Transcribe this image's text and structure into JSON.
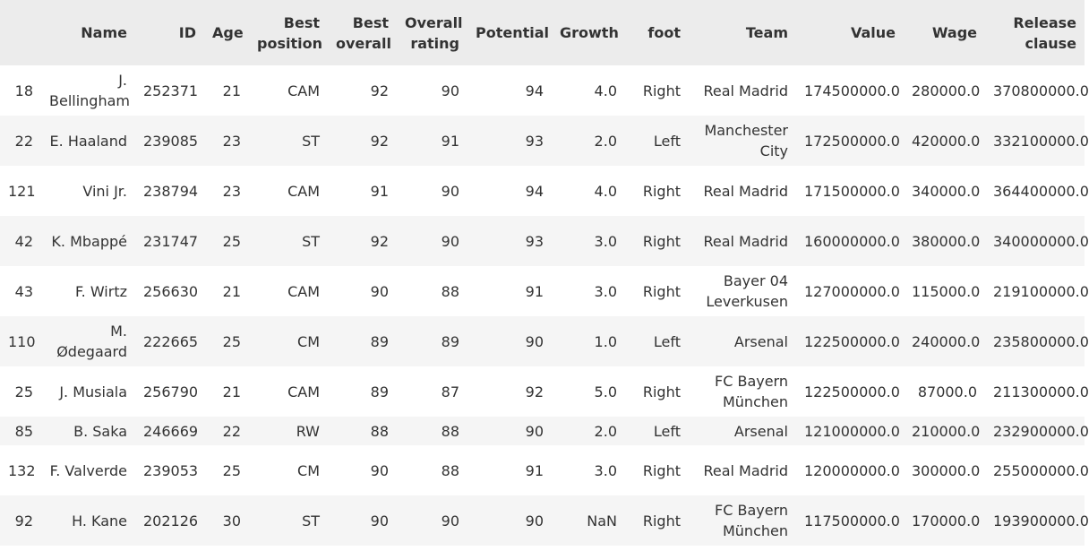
{
  "columns": {
    "index": "",
    "name": "Name",
    "id": "ID",
    "age": "Age",
    "best_position": "Best position",
    "best_overall": "Best overall",
    "overall_rating": "Overall rating",
    "potential": "Potential",
    "growth": "Growth",
    "foot": "foot",
    "team": "Team",
    "value": "Value",
    "wage": "Wage",
    "release_clause": "Release clause"
  },
  "rows": [
    {
      "index": "18",
      "name": "J. Bellingham",
      "id": "252371",
      "age": "21",
      "best_position": "CAM",
      "best_overall": "92",
      "overall_rating": "90",
      "potential": "94",
      "growth": "4.0",
      "foot": "Right",
      "team": "Real Madrid",
      "value": "174500000.0",
      "wage": "280000.0",
      "release_clause": "370800000.0"
    },
    {
      "index": "22",
      "name": "E. Haaland",
      "id": "239085",
      "age": "23",
      "best_position": "ST",
      "best_overall": "92",
      "overall_rating": "91",
      "potential": "93",
      "growth": "2.0",
      "foot": "Left",
      "team": "Manchester City",
      "value": "172500000.0",
      "wage": "420000.0",
      "release_clause": "332100000.0"
    },
    {
      "index": "121",
      "name": "Vini Jr.",
      "id": "238794",
      "age": "23",
      "best_position": "CAM",
      "best_overall": "91",
      "overall_rating": "90",
      "potential": "94",
      "growth": "4.0",
      "foot": "Right",
      "team": "Real Madrid",
      "value": "171500000.0",
      "wage": "340000.0",
      "release_clause": "364400000.0"
    },
    {
      "index": "42",
      "name": "K. Mbappé",
      "id": "231747",
      "age": "25",
      "best_position": "ST",
      "best_overall": "92",
      "overall_rating": "90",
      "potential": "93",
      "growth": "3.0",
      "foot": "Right",
      "team": "Real Madrid",
      "value": "160000000.0",
      "wage": "380000.0",
      "release_clause": "340000000.0"
    },
    {
      "index": "43",
      "name": "F. Wirtz",
      "id": "256630",
      "age": "21",
      "best_position": "CAM",
      "best_overall": "90",
      "overall_rating": "88",
      "potential": "91",
      "growth": "3.0",
      "foot": "Right",
      "team": "Bayer 04 Leverkusen",
      "value": "127000000.0",
      "wage": "115000.0",
      "release_clause": "219100000.0"
    },
    {
      "index": "110",
      "name": "M. Ødegaard",
      "id": "222665",
      "age": "25",
      "best_position": "CM",
      "best_overall": "89",
      "overall_rating": "89",
      "potential": "90",
      "growth": "1.0",
      "foot": "Left",
      "team": "Arsenal",
      "value": "122500000.0",
      "wage": "240000.0",
      "release_clause": "235800000.0"
    },
    {
      "index": "25",
      "name": "J. Musiala",
      "id": "256790",
      "age": "21",
      "best_position": "CAM",
      "best_overall": "89",
      "overall_rating": "87",
      "potential": "92",
      "growth": "5.0",
      "foot": "Right",
      "team": "FC Bayern München",
      "value": "122500000.0",
      "wage": "87000.0",
      "release_clause": "211300000.0"
    },
    {
      "index": "85",
      "name": "B. Saka",
      "id": "246669",
      "age": "22",
      "best_position": "RW",
      "best_overall": "88",
      "overall_rating": "88",
      "potential": "90",
      "growth": "2.0",
      "foot": "Left",
      "team": "Arsenal",
      "value": "121000000.0",
      "wage": "210000.0",
      "release_clause": "232900000.0"
    },
    {
      "index": "132",
      "name": "F. Valverde",
      "id": "239053",
      "age": "25",
      "best_position": "CM",
      "best_overall": "90",
      "overall_rating": "88",
      "potential": "91",
      "growth": "3.0",
      "foot": "Right",
      "team": "Real Madrid",
      "value": "120000000.0",
      "wage": "300000.0",
      "release_clause": "255000000.0"
    },
    {
      "index": "92",
      "name": "H. Kane",
      "id": "202126",
      "age": "30",
      "best_position": "ST",
      "best_overall": "90",
      "overall_rating": "90",
      "potential": "90",
      "growth": "NaN",
      "foot": "Right",
      "team": "FC Bayern München",
      "value": "117500000.0",
      "wage": "170000.0",
      "release_clause": "193900000.0"
    }
  ]
}
